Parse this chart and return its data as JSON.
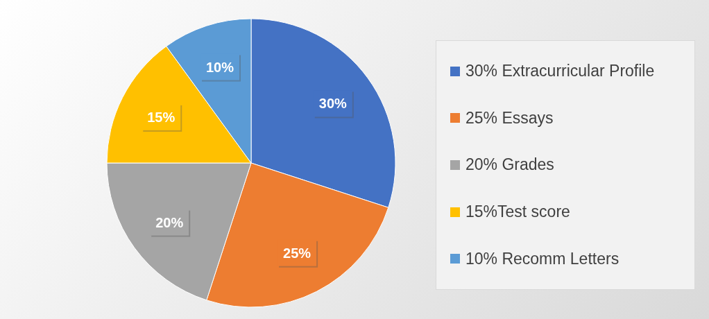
{
  "chart_data": {
    "type": "pie",
    "categories": [
      "30% Extracurricular Profile",
      "25% Essays",
      "20% Grades",
      "15%Test score",
      "10% Recomm Letters"
    ],
    "values": [
      30,
      25,
      20,
      15,
      10
    ],
    "colors": [
      "#4472c4",
      "#ed7d31",
      "#a5a5a5",
      "#ffc000",
      "#5b9bd5"
    ],
    "value_labels": [
      "30%",
      "25%",
      "20%",
      "15%",
      "10%"
    ],
    "legend": "right"
  }
}
